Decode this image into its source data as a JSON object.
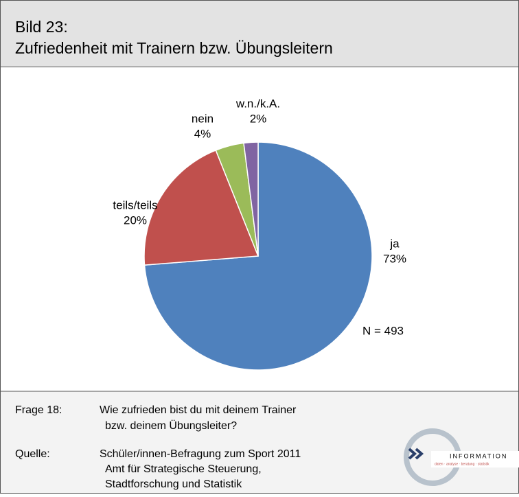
{
  "header": {
    "label": "Bild 23:",
    "title": "Zufriedenheit mit Trainern bzw. Übungsleitern"
  },
  "chart_data": {
    "type": "pie",
    "categories": [
      "ja",
      "teils/teils",
      "nein",
      "w.n./k.A."
    ],
    "values": [
      73,
      20,
      4,
      2
    ],
    "value_labels": [
      "73%",
      "20%",
      "4%",
      "2%"
    ],
    "colors": [
      "#4f81bd",
      "#c0504d",
      "#9bbb59",
      "#8064a2"
    ],
    "annotation": "N = 493"
  },
  "footer": {
    "question_label": "Frage 18:",
    "question": [
      "Wie zufrieden bist du mit deinem Trainer",
      "bzw. deinem Übungsleiter?"
    ],
    "source_label": "Quelle:",
    "source": [
      "Schüler/innen-Befragung zum Sport 2011",
      "Amt für Strategische Steuerung,",
      "Stadtforschung und Statistik"
    ],
    "logo": "INFORMATION",
    "logo_sub": "daten · analyse · beratung · statistik"
  }
}
